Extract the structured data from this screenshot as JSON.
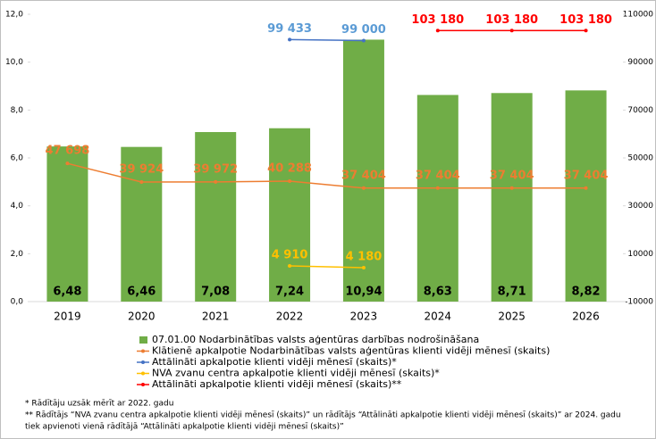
{
  "chart_data": {
    "type": "bar",
    "categories": [
      "2019",
      "2020",
      "2021",
      "2022",
      "2023",
      "2024",
      "2025",
      "2026"
    ],
    "series": [
      {
        "name": "07.01.00 Nodarbinātības valsts aģentūras darbības nodrošināšana",
        "kind": "bar",
        "color": "#70ad47",
        "values": [
          6.48,
          6.46,
          7.08,
          7.24,
          10.94,
          8.63,
          8.71,
          8.82
        ],
        "value_labels": [
          "6,48",
          "6,46",
          "7,08",
          "7,24",
          "10,94",
          "8,63",
          "8,71",
          "8,82"
        ]
      },
      {
        "name": "Klātienē apkalpotie Nodarbinātības valsts aģentūras klienti vidēji mēnesī (skaits)",
        "kind": "line",
        "axis": "y2",
        "color": "#ed7d31",
        "values": [
          47698,
          39924,
          39972,
          40288,
          37404,
          37404,
          37404,
          37404
        ],
        "value_labels": [
          "47 698",
          "39 924",
          "39 972",
          "40 288",
          "37 404",
          "37 404",
          "37 404",
          "37 404"
        ]
      },
      {
        "name": "Attālināti apkalpotie klienti vidēji mēnesī (skaits)*",
        "kind": "line",
        "axis": "y2",
        "color": "#4472c4",
        "label_color": "#5b9bd5",
        "values": [
          null,
          null,
          null,
          99433,
          99000,
          null,
          null,
          null
        ],
        "value_labels": [
          null,
          null,
          null,
          "99 433",
          "99 000",
          null,
          null,
          null
        ]
      },
      {
        "name": "NVA zvanu centra apkalpotie klienti vidēji mēnesī (skaits)*",
        "kind": "line",
        "axis": "y2",
        "color": "#ffc000",
        "values": [
          null,
          null,
          null,
          4910,
          4180,
          null,
          null,
          null
        ],
        "value_labels": [
          null,
          null,
          null,
          "4 910",
          "4 180",
          null,
          null,
          null
        ]
      },
      {
        "name": "Attālināti apkalpotie klienti vidēji mēnesī (skaits)**",
        "kind": "line",
        "axis": "y2",
        "color": "#ff0000",
        "values": [
          null,
          null,
          null,
          null,
          null,
          103180,
          103180,
          103180
        ],
        "value_labels": [
          null,
          null,
          null,
          null,
          null,
          "103 180",
          "103 180",
          "103 180"
        ]
      }
    ],
    "ylim": [
      0,
      12
    ],
    "yticks": [
      {
        "value": 0,
        "label": "0,0"
      },
      {
        "value": 2,
        "label": "2,0"
      },
      {
        "value": 4,
        "label": "4,0"
      },
      {
        "value": 6,
        "label": "6,0"
      },
      {
        "value": 8,
        "label": "8,0"
      },
      {
        "value": 10,
        "label": "10,0"
      },
      {
        "value": 12,
        "label": "12,0"
      }
    ],
    "y2lim": [
      -10000,
      110000
    ],
    "y2ticks": [
      -10000,
      10000,
      30000,
      50000,
      70000,
      90000,
      110000
    ],
    "footnotes": [
      "* Rādītāju uzsāk mērīt ar 2022. gadu",
      "** Rādītājs “NVA zvanu centra apkalpotie klienti vidēji mēnesī (skaits)” un rādītājs “Attālināti apkalpotie klienti vidēji mēnesī (skaits)”  ar 2024. gadu",
      "tiek apvienoti vienā rādītājā “Attālināti apkalpotie klienti vidēji mēnesī (skaits)”"
    ]
  }
}
